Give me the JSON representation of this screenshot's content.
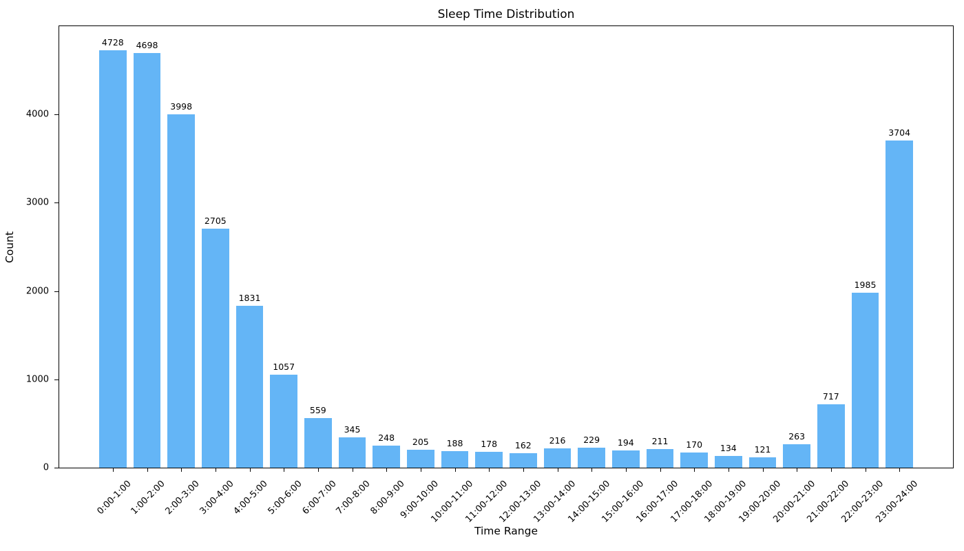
{
  "chart_data": {
    "type": "bar",
    "title": "Sleep Time Distribution",
    "xlabel": "Time Range",
    "ylabel": "Count",
    "categories": [
      "0:00-1:00",
      "1:00-2:00",
      "2:00-3:00",
      "3:00-4:00",
      "4:00-5:00",
      "5:00-6:00",
      "6:00-7:00",
      "7:00-8:00",
      "8:00-9:00",
      "9:00-10:00",
      "10:00-11:00",
      "11:00-12:00",
      "12:00-13:00",
      "13:00-14:00",
      "14:00-15:00",
      "15:00-16:00",
      "16:00-17:00",
      "17:00-18:00",
      "18:00-19:00",
      "19:00-20:00",
      "20:00-21:00",
      "21:00-22:00",
      "22:00-23:00",
      "23:00-24:00"
    ],
    "values": [
      4728,
      4698,
      3998,
      2705,
      1831,
      1057,
      559,
      345,
      248,
      205,
      188,
      178,
      162,
      216,
      229,
      194,
      211,
      170,
      134,
      121,
      263,
      717,
      1985,
      3704
    ],
    "bar_labels_shown": true,
    "bar_color": "#64b5f6",
    "ylim": [
      0,
      5000
    ],
    "yticks": [
      0,
      1000,
      2000,
      3000,
      4000
    ],
    "xtick_rotation_deg": 45,
    "grid": false,
    "legend": "none",
    "background_color": "#ffffff",
    "text_color": "#000000"
  }
}
